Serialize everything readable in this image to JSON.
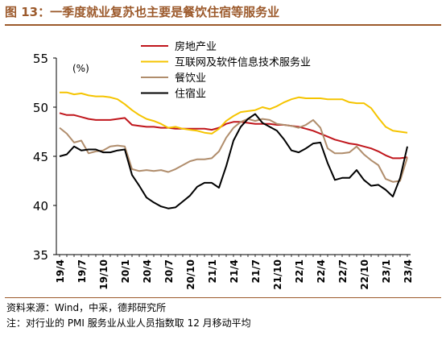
{
  "figure": {
    "title": "图 13：一季度就业复苏也主要是餐饮住宿等服务业",
    "source": "资料来源：Wind，中采，德邦研究所",
    "footnote": "注：对行业的 PMI 服务业从业人员指数取 12 月移动平均"
  },
  "chart_data": {
    "type": "line",
    "ylabel": "(%)",
    "ylim": [
      35,
      55
    ],
    "yticks": [
      35,
      40,
      45,
      50,
      55
    ],
    "grid": false,
    "legend_position": "top-center",
    "x": [
      "19/4",
      "19/5",
      "19/6",
      "19/7",
      "19/8",
      "19/9",
      "19/10",
      "19/11",
      "19/12",
      "20/1",
      "20/2",
      "20/3",
      "20/4",
      "20/5",
      "20/6",
      "20/7",
      "20/8",
      "20/9",
      "20/10",
      "20/11",
      "20/12",
      "21/1",
      "21/2",
      "21/3",
      "21/4",
      "21/5",
      "21/6",
      "21/7",
      "21/8",
      "21/9",
      "21/10",
      "21/11",
      "21/12",
      "22/1",
      "22/2",
      "22/3",
      "22/4",
      "22/5",
      "22/6",
      "22/7",
      "22/8",
      "22/9",
      "22/10",
      "22/11",
      "22/12",
      "23/1",
      "23/2",
      "23/3",
      "23/4"
    ],
    "xtick_labels": [
      "19/4",
      "19/7",
      "19/10",
      "20/1",
      "20/4",
      "20/7",
      "20/10",
      "21/1",
      "21/4",
      "21/7",
      "21/10",
      "22/1",
      "22/4",
      "22/7",
      "22/10",
      "23/1",
      "23/4"
    ],
    "series": [
      {
        "name": "房地产业",
        "color": "#c0161c",
        "values": [
          49.4,
          49.2,
          49.2,
          49.0,
          48.8,
          48.7,
          48.7,
          48.7,
          48.8,
          48.9,
          48.2,
          48.1,
          48.0,
          48.0,
          47.9,
          47.9,
          47.8,
          47.8,
          47.8,
          47.8,
          47.8,
          47.7,
          47.9,
          48.3,
          48.5,
          48.5,
          48.4,
          48.3,
          48.3,
          48.3,
          48.2,
          48.2,
          48.1,
          48.0,
          47.8,
          47.6,
          47.3,
          47.0,
          46.7,
          46.5,
          46.3,
          46.2,
          46.0,
          45.8,
          45.5,
          45.1,
          44.8,
          44.8,
          44.9
        ]
      },
      {
        "name": "互联网及软件信息技术服务业",
        "color": "#f5c400",
        "values": [
          51.5,
          51.5,
          51.3,
          51.4,
          51.2,
          51.1,
          51.1,
          51.0,
          50.8,
          50.3,
          49.7,
          49.2,
          48.8,
          48.6,
          48.3,
          47.9,
          48.0,
          47.8,
          47.7,
          47.6,
          47.4,
          47.3,
          47.8,
          48.6,
          49.1,
          49.5,
          49.6,
          49.7,
          50.0,
          49.8,
          50.1,
          50.5,
          50.8,
          51.0,
          50.9,
          50.9,
          50.9,
          50.8,
          50.8,
          50.8,
          50.5,
          50.4,
          50.4,
          49.9,
          48.9,
          48.0,
          47.6,
          47.5,
          47.4
        ]
      },
      {
        "name": "餐饮业",
        "color": "#b08d6c",
        "values": [
          47.9,
          47.3,
          46.4,
          46.6,
          45.3,
          45.5,
          45.6,
          46.0,
          46.1,
          46.0,
          43.7,
          43.5,
          43.6,
          43.5,
          43.6,
          43.4,
          43.7,
          44.1,
          44.5,
          44.7,
          44.7,
          44.8,
          45.5,
          46.9,
          47.9,
          48.5,
          48.8,
          48.6,
          48.8,
          48.7,
          48.3,
          48.2,
          48.1,
          47.9,
          48.2,
          48.7,
          47.9,
          45.8,
          45.3,
          45.3,
          45.4,
          46.0,
          45.2,
          44.6,
          44.1,
          42.7,
          42.4,
          42.5,
          44.9
        ]
      },
      {
        "name": "住宿业",
        "color": "#000000",
        "values": [
          45.0,
          45.2,
          46.0,
          45.6,
          45.7,
          45.7,
          45.4,
          45.4,
          45.6,
          45.7,
          43.1,
          42.0,
          40.8,
          40.3,
          39.9,
          39.7,
          39.8,
          40.4,
          41.0,
          41.9,
          42.3,
          42.3,
          41.8,
          44.0,
          46.6,
          48.0,
          48.8,
          49.3,
          48.4,
          48.0,
          47.6,
          46.7,
          45.6,
          45.4,
          45.8,
          46.3,
          46.4,
          44.3,
          42.6,
          42.8,
          42.8,
          43.6,
          42.6,
          42.0,
          42.1,
          41.6,
          40.9,
          42.8,
          46.0
        ]
      }
    ]
  }
}
